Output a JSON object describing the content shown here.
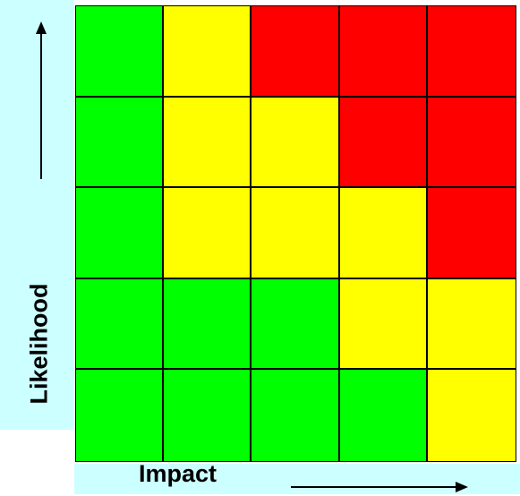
{
  "diagram": {
    "x_label": "Impact",
    "y_label": "Likelihood",
    "colors": {
      "green": "#00ff00",
      "yellow": "#ffff00",
      "red": "#ff0000"
    },
    "grid": [
      [
        "green",
        "yellow",
        "red",
        "red",
        "red"
      ],
      [
        "green",
        "yellow",
        "yellow",
        "red",
        "red"
      ],
      [
        "green",
        "yellow",
        "yellow",
        "yellow",
        "red"
      ],
      [
        "green",
        "green",
        "green",
        "yellow",
        "yellow"
      ],
      [
        "green",
        "green",
        "green",
        "green",
        "yellow"
      ]
    ],
    "icons": {
      "y_arrow": "arrow-up-icon",
      "x_arrow": "arrow-right-icon"
    }
  }
}
